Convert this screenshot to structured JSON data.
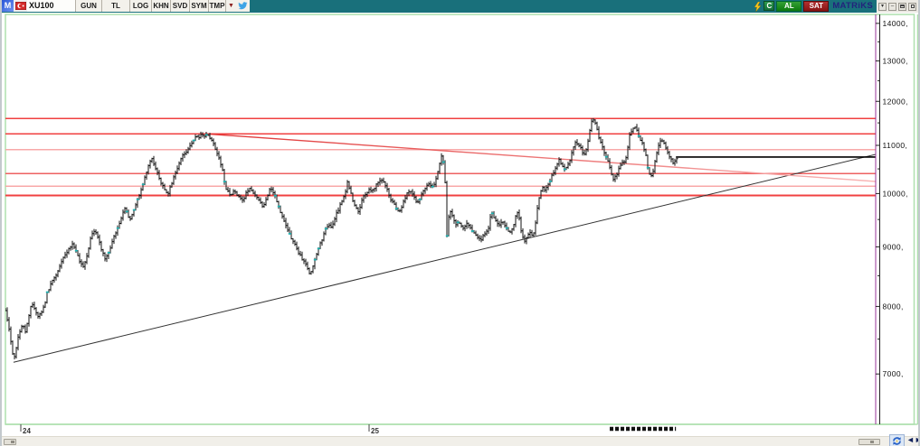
{
  "titlebar": {
    "app_icon_letter": "M",
    "symbol": "XU100",
    "menu_buttons": [
      "GUN",
      "TL",
      "LOG",
      "KHN",
      "SVD",
      "SYM",
      "TMP"
    ],
    "dropdown_glyph": "▼",
    "status_letter": "C",
    "buy_label": "AL",
    "sell_label": "SAT",
    "brand": "MATRiKS",
    "window_buttons": [
      "▾",
      "–"
    ],
    "colors": {
      "bar": "#19707b",
      "buy": "#0d7a0d",
      "sell": "#871212",
      "brand_navy": "#23237c"
    }
  },
  "bottom": {
    "pan_left_glyph": "◄",
    "pan_right_glyph": "►"
  },
  "chart_data": {
    "type": "candlestick",
    "symbol": "XU100",
    "timeframe": "GUN",
    "currency": "TL",
    "scale": "log",
    "grid": false,
    "legend": "none",
    "ylim": [
      6335,
      14250
    ],
    "y_axis": {
      "side": "right",
      "minor_step": 500,
      "ticks": [
        {
          "price": 14000,
          "label": "14000,"
        },
        {
          "price": 13000,
          "label": "13000,"
        },
        {
          "price": 12000,
          "label": "12000,"
        },
        {
          "price": 11000,
          "label": "11000,"
        },
        {
          "price": 10000,
          "label": "10000,"
        },
        {
          "price": 9000,
          "label": "9000,"
        },
        {
          "price": 8000,
          "label": "8000,"
        },
        {
          "price": 7000,
          "label": "7000,"
        }
      ]
    },
    "x_axis": {
      "unit": "year",
      "ticks": [
        {
          "t": 24,
          "label": "24"
        },
        {
          "t": 25,
          "label": "25"
        }
      ]
    },
    "levels": [
      {
        "price": 11600,
        "color": "#f04040",
        "width": 1.6
      },
      {
        "price": 11250,
        "color": "#f04040",
        "width": 1.6
      },
      {
        "price": 10910,
        "color": "#f8a8a8",
        "width": 1.6
      },
      {
        "price": 10400,
        "color": "#ee6262",
        "width": 1.5
      },
      {
        "price": 10150,
        "color": "#f8a8a8",
        "width": 1.6
      },
      {
        "price": 9960,
        "color": "#f04040",
        "width": 1.8
      }
    ],
    "trendlines": [
      {
        "name": "ascending-support",
        "from": {
          "t": 23.979,
          "price": 7164
        },
        "to": {
          "t": 26.455,
          "price": 10806
        },
        "color": "#333333",
        "width": 1
      },
      {
        "name": "descending-resistance",
        "from": {
          "t": 24.538,
          "price": 11250
        },
        "to": {
          "t": 26.455,
          "price": 10242
        },
        "color": "#e03434",
        "color_end": "#f9b6b6",
        "width": 1.4
      },
      {
        "name": "last-price-line",
        "from": {
          "t": 25.881,
          "price": 10748
        },
        "to": {
          "t": 26.455,
          "price": 10748
        },
        "color": "#000000",
        "width": 1.6
      }
    ],
    "marker_bar": {
      "t_start": 25.691,
      "t_end": 25.881,
      "style": "dashed",
      "color": "#111111"
    },
    "series": {
      "name": "XU100 daily close (approx)",
      "anchors": [
        [
          23.956,
          7926
        ],
        [
          23.964,
          7718
        ],
        [
          23.971,
          7476
        ],
        [
          23.979,
          7190
        ],
        [
          23.987,
          7383
        ],
        [
          23.995,
          7582
        ],
        [
          24.005,
          7745
        ],
        [
          24.013,
          7609
        ],
        [
          24.023,
          7856
        ],
        [
          24.031,
          8053
        ],
        [
          24.039,
          7968
        ],
        [
          24.049,
          7856
        ],
        [
          24.06,
          7926
        ],
        [
          24.068,
          8025
        ],
        [
          24.075,
          8212
        ],
        [
          24.086,
          8359
        ],
        [
          24.096,
          8464
        ],
        [
          24.106,
          8585
        ],
        [
          24.117,
          8739
        ],
        [
          24.127,
          8864
        ],
        [
          24.138,
          8960
        ],
        [
          24.148,
          9040
        ],
        [
          24.158,
          8928
        ],
        [
          24.169,
          8739
        ],
        [
          24.179,
          8662
        ],
        [
          24.19,
          8849
        ],
        [
          24.197,
          9056
        ],
        [
          24.205,
          9252
        ],
        [
          24.213,
          9302
        ],
        [
          24.223,
          9121
        ],
        [
          24.231,
          8960
        ],
        [
          24.242,
          8770
        ],
        [
          24.252,
          8896
        ],
        [
          24.26,
          9056
        ],
        [
          24.268,
          9186
        ],
        [
          24.275,
          9302
        ],
        [
          24.283,
          9418
        ],
        [
          24.291,
          9605
        ],
        [
          24.299,
          9725
        ],
        [
          24.306,
          9588
        ],
        [
          24.314,
          9486
        ],
        [
          24.322,
          9639
        ],
        [
          24.33,
          9795
        ],
        [
          24.338,
          9936
        ],
        [
          24.345,
          10079
        ],
        [
          24.353,
          10260
        ],
        [
          24.361,
          10408
        ],
        [
          24.369,
          10633
        ],
        [
          24.377,
          10709
        ],
        [
          24.384,
          10519
        ],
        [
          24.392,
          10408
        ],
        [
          24.4,
          10260
        ],
        [
          24.408,
          10151
        ],
        [
          24.416,
          10025
        ],
        [
          24.423,
          9971
        ],
        [
          24.431,
          10169
        ],
        [
          24.439,
          10334
        ],
        [
          24.447,
          10482
        ],
        [
          24.455,
          10633
        ],
        [
          24.462,
          10748
        ],
        [
          24.47,
          10825
        ],
        [
          24.478,
          10902
        ],
        [
          24.486,
          11000
        ],
        [
          24.494,
          11079
        ],
        [
          24.501,
          11158
        ],
        [
          24.509,
          11178
        ],
        [
          24.517,
          11218
        ],
        [
          24.525,
          11198
        ],
        [
          24.532,
          11218
        ],
        [
          24.54,
          11198
        ],
        [
          24.548,
          11118
        ],
        [
          24.556,
          10980
        ],
        [
          24.564,
          10825
        ],
        [
          24.571,
          10671
        ],
        [
          24.579,
          10482
        ],
        [
          24.587,
          10133
        ],
        [
          24.595,
          10025
        ],
        [
          24.603,
          9936
        ],
        [
          24.61,
          10061
        ],
        [
          24.618,
          10007
        ],
        [
          24.626,
          9936
        ],
        [
          24.634,
          9865
        ],
        [
          24.642,
          9936
        ],
        [
          24.649,
          10043
        ],
        [
          24.657,
          10115
        ],
        [
          24.665,
          10043
        ],
        [
          24.673,
          9971
        ],
        [
          24.681,
          9918
        ],
        [
          24.688,
          9830
        ],
        [
          24.696,
          9725
        ],
        [
          24.704,
          9865
        ],
        [
          24.712,
          10043
        ],
        [
          24.719,
          10097
        ],
        [
          24.727,
          10007
        ],
        [
          24.735,
          9830
        ],
        [
          24.743,
          9691
        ],
        [
          24.751,
          9554
        ],
        [
          24.758,
          9418
        ],
        [
          24.766,
          9302
        ],
        [
          24.774,
          9186
        ],
        [
          24.782,
          9089
        ],
        [
          24.79,
          8992
        ],
        [
          24.797,
          8896
        ],
        [
          24.805,
          8817
        ],
        [
          24.813,
          8739
        ],
        [
          24.821,
          8647
        ],
        [
          24.829,
          8539
        ],
        [
          24.836,
          8616
        ],
        [
          24.844,
          8770
        ],
        [
          24.852,
          8928
        ],
        [
          24.86,
          9056
        ],
        [
          24.868,
          9186
        ],
        [
          24.875,
          9302
        ],
        [
          24.883,
          9418
        ],
        [
          24.891,
          9351
        ],
        [
          24.899,
          9469
        ],
        [
          24.906,
          9605
        ],
        [
          24.914,
          9725
        ],
        [
          24.922,
          9865
        ],
        [
          24.93,
          9989
        ],
        [
          24.938,
          10223
        ],
        [
          24.945,
          10079
        ],
        [
          24.953,
          9865
        ],
        [
          24.961,
          9725
        ],
        [
          24.969,
          9639
        ],
        [
          24.977,
          9813
        ],
        [
          24.984,
          9936
        ],
        [
          24.992,
          10025
        ],
        [
          25.0,
          10079
        ],
        [
          25.008,
          10043
        ],
        [
          25.016,
          10115
        ],
        [
          25.023,
          10187
        ],
        [
          25.031,
          10241
        ],
        [
          25.039,
          10278
        ],
        [
          25.047,
          10133
        ],
        [
          25.055,
          10025
        ],
        [
          25.062,
          9900
        ],
        [
          25.07,
          9813
        ],
        [
          25.078,
          9725
        ],
        [
          25.086,
          9656
        ],
        [
          25.094,
          9760
        ],
        [
          25.101,
          9865
        ],
        [
          25.109,
          9989
        ],
        [
          25.117,
          10043
        ],
        [
          25.125,
          9971
        ],
        [
          25.132,
          9900
        ],
        [
          25.14,
          9813
        ],
        [
          25.148,
          9936
        ],
        [
          25.156,
          10043
        ],
        [
          25.164,
          10133
        ],
        [
          25.171,
          10187
        ],
        [
          25.179,
          10151
        ],
        [
          25.187,
          10187
        ],
        [
          25.195,
          10334
        ],
        [
          25.203,
          10633
        ],
        [
          25.21,
          10863
        ],
        [
          25.218,
          10260
        ],
        [
          25.223,
          9186
        ],
        [
          25.229,
          9588
        ],
        [
          25.234,
          9639
        ],
        [
          25.242,
          9520
        ],
        [
          25.249,
          9418
        ],
        [
          25.257,
          9469
        ],
        [
          25.265,
          9385
        ],
        [
          25.273,
          9334
        ],
        [
          25.281,
          9418
        ],
        [
          25.288,
          9351
        ],
        [
          25.296,
          9285
        ],
        [
          25.304,
          9219
        ],
        [
          25.312,
          9170
        ],
        [
          25.319,
          9121
        ],
        [
          25.327,
          9186
        ],
        [
          25.335,
          9252
        ],
        [
          25.343,
          9351
        ],
        [
          25.351,
          9639
        ],
        [
          25.358,
          9554
        ],
        [
          25.366,
          9452
        ],
        [
          25.374,
          9385
        ],
        [
          25.382,
          9469
        ],
        [
          25.39,
          9385
        ],
        [
          25.397,
          9302
        ],
        [
          25.405,
          9252
        ],
        [
          25.413,
          9351
        ],
        [
          25.421,
          9554
        ],
        [
          25.429,
          9639
        ],
        [
          25.436,
          9302
        ],
        [
          25.444,
          9089
        ],
        [
          25.452,
          9186
        ],
        [
          25.46,
          9252
        ],
        [
          25.468,
          9219
        ],
        [
          25.475,
          9285
        ],
        [
          25.483,
          9725
        ],
        [
          25.491,
          9989
        ],
        [
          25.499,
          10115
        ],
        [
          25.506,
          10079
        ],
        [
          25.514,
          10169
        ],
        [
          25.522,
          10297
        ],
        [
          25.53,
          10445
        ],
        [
          25.538,
          10595
        ],
        [
          25.545,
          10690
        ],
        [
          25.553,
          10576
        ],
        [
          25.561,
          10482
        ],
        [
          25.569,
          10538
        ],
        [
          25.577,
          10690
        ],
        [
          25.584,
          10922
        ],
        [
          25.592,
          11059
        ],
        [
          25.6,
          11020
        ],
        [
          25.608,
          10922
        ],
        [
          25.616,
          10825
        ],
        [
          25.623,
          10863
        ],
        [
          25.631,
          11218
        ],
        [
          25.639,
          11522
        ],
        [
          25.647,
          11563
        ],
        [
          25.655,
          11318
        ],
        [
          25.662,
          11118
        ],
        [
          25.67,
          10981
        ],
        [
          25.678,
          10786
        ],
        [
          25.686,
          10633
        ],
        [
          25.694,
          10445
        ],
        [
          25.701,
          10297
        ],
        [
          25.709,
          10352
        ],
        [
          25.717,
          10482
        ],
        [
          25.725,
          10671
        ],
        [
          25.732,
          10633
        ],
        [
          25.74,
          10786
        ],
        [
          25.748,
          11218
        ],
        [
          25.756,
          11379
        ],
        [
          25.764,
          11420
        ],
        [
          25.771,
          11259
        ],
        [
          25.779,
          11118
        ],
        [
          25.787,
          10981
        ],
        [
          25.795,
          10786
        ],
        [
          25.803,
          10408
        ],
        [
          25.81,
          10334
        ],
        [
          25.818,
          10538
        ],
        [
          25.826,
          10825
        ],
        [
          25.834,
          11059
        ],
        [
          25.842,
          11118
        ],
        [
          25.849,
          11020
        ],
        [
          25.857,
          10863
        ],
        [
          25.865,
          10728
        ],
        [
          25.873,
          10633
        ],
        [
          25.881,
          10709
        ],
        [
          25.886,
          10748
        ]
      ]
    }
  }
}
